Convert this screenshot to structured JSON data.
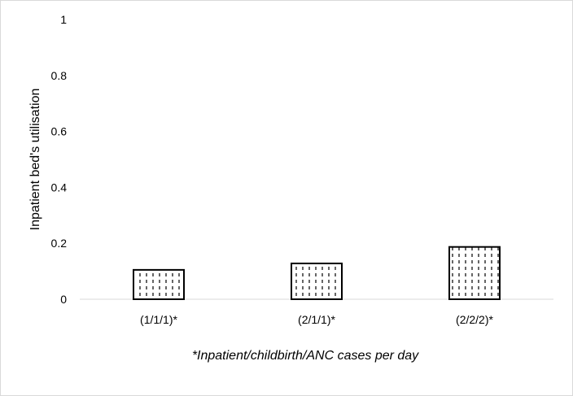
{
  "chart_data": {
    "type": "bar",
    "categories": [
      "(1/1/1)*",
      "(2/1/1)*",
      "(2/2/2)*"
    ],
    "values": [
      0.105,
      0.128,
      0.187
    ],
    "title": "",
    "xlabel": "*Inpatient/childbirth/ANC cases per day",
    "ylabel": "Inpatient bed's utilisation",
    "ylim": [
      0,
      1
    ],
    "yticks": [
      "0",
      "0.2",
      "0.4",
      "0.6",
      "0.8",
      "1"
    ],
    "grid": false,
    "legend": "none",
    "bar_pattern": "dashed-vertical-lines",
    "colors": {
      "bar_fill": "#ffffff",
      "bar_stroke": "#000000",
      "axis": "#d9d9d9"
    }
  }
}
